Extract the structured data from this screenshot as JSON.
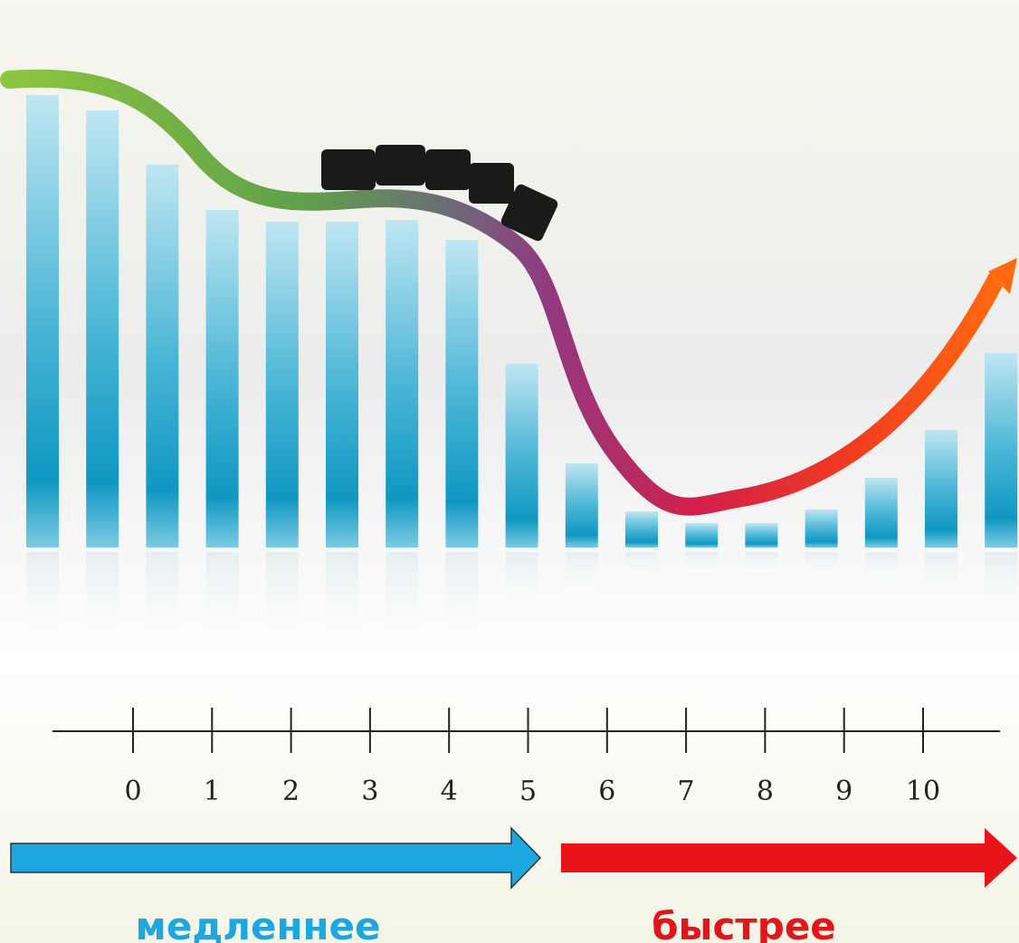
{
  "scale": {
    "ticks": [
      "0",
      "1",
      "2",
      "3",
      "4",
      "5",
      "6",
      "7",
      "8",
      "9",
      "10"
    ]
  },
  "labels": {
    "slower": "медленнее",
    "faster": "быстрее"
  }
}
